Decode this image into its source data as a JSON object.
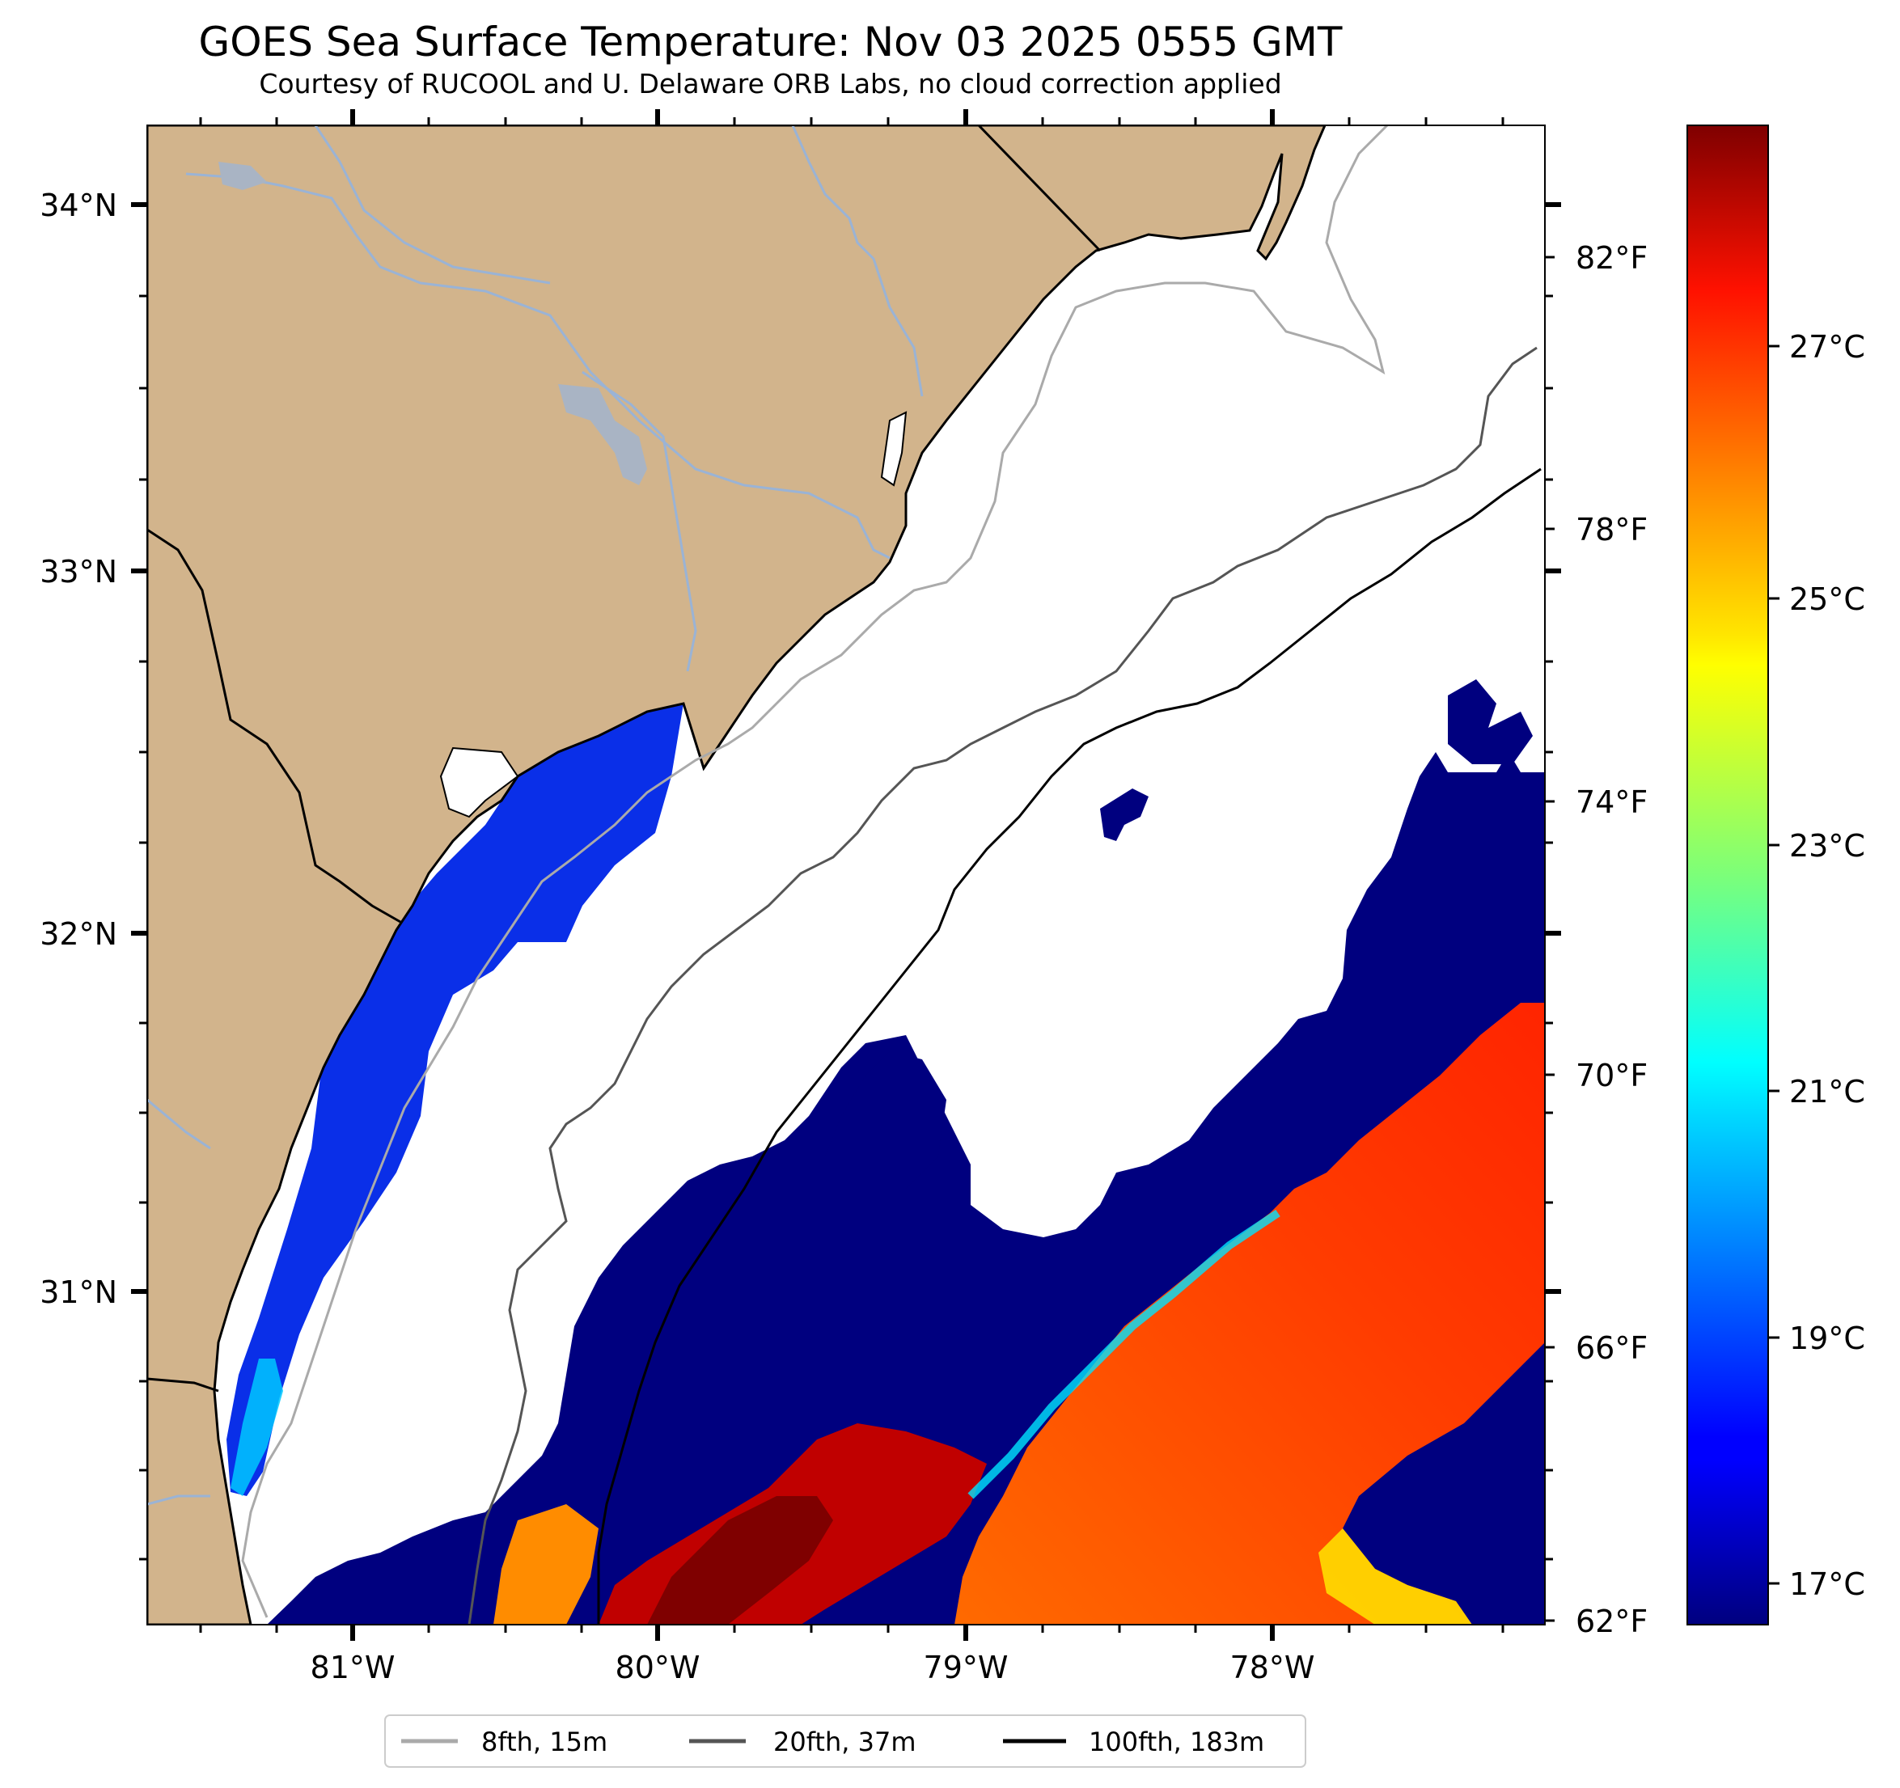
{
  "title": "GOES Sea Surface Temperature: Nov 03 2025 0555 GMT",
  "subtitle": "Courtesy of RUCOOL and U. Delaware ORB Labs, no cloud correction applied",
  "map": {
    "lat_labels": [
      "34°N",
      "33°N",
      "32°N",
      "31°N"
    ],
    "lon_labels": [
      "81°W",
      "80°W",
      "79°W",
      "78°W"
    ],
    "colors": {
      "land": "#d2b48c",
      "ocean_nodata": "#ffffff",
      "coastline": "#000000",
      "rivers": "#9ab3d5"
    }
  },
  "colorbar": {
    "celsius_labels": [
      "27°C",
      "25°C",
      "23°C",
      "21°C",
      "19°C",
      "17°C"
    ],
    "fahrenheit_labels": [
      "82°F",
      "78°F",
      "74°F",
      "70°F",
      "66°F",
      "62°F"
    ],
    "colormap": "jet"
  },
  "legend": {
    "items": [
      {
        "label": "8fth, 15m",
        "color": "#aaaaaa"
      },
      {
        "label": "20fth, 37m",
        "color": "#555555"
      },
      {
        "label": "100fth, 183m",
        "color": "#000000"
      }
    ]
  }
}
